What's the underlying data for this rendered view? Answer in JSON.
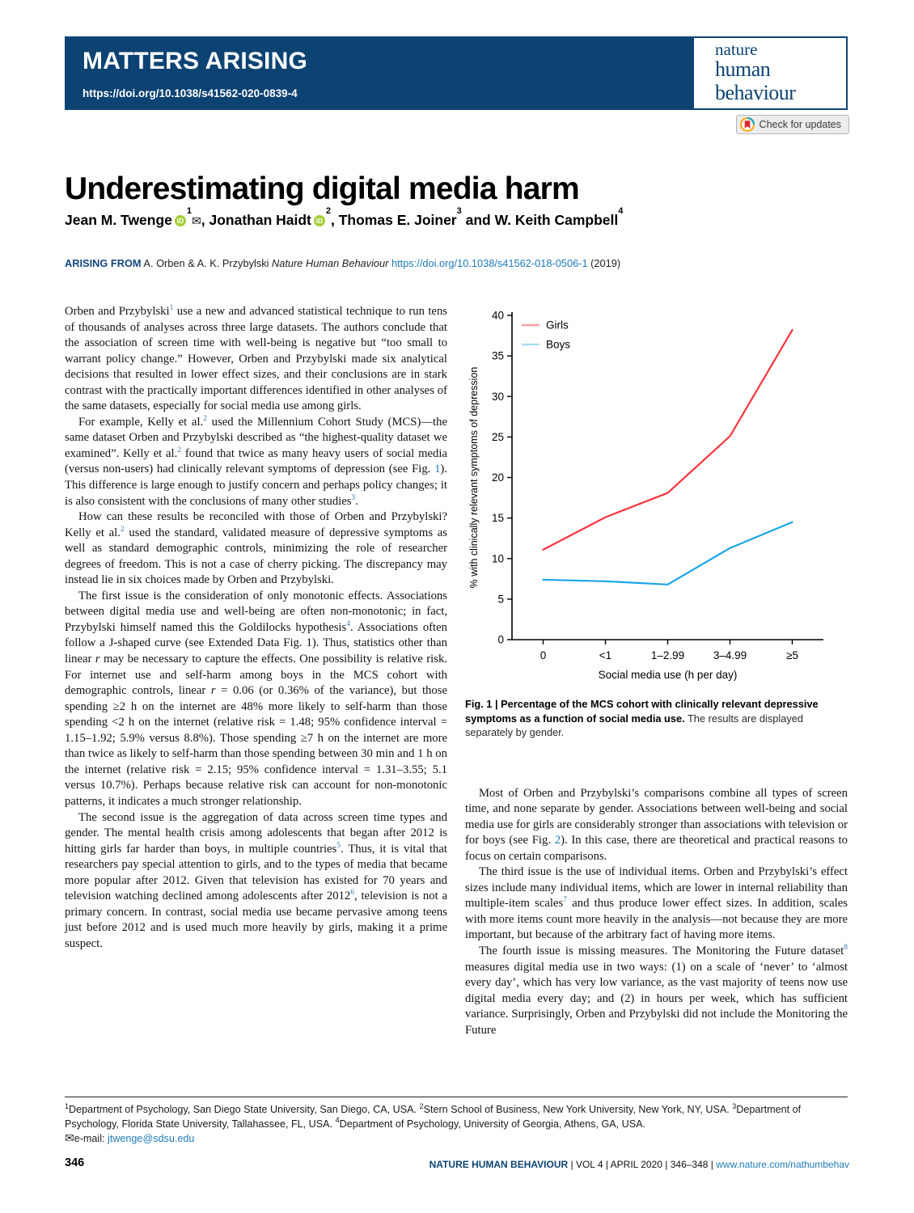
{
  "header": {
    "kicker": "MATTERS ARISING",
    "doi": "https://doi.org/10.1038/s41562-020-0839-4",
    "brand_top": "nature",
    "brand_bottom": "human behaviour",
    "banner_color": "#0d4373",
    "check_updates_label": "Check for updates"
  },
  "article": {
    "title": "Underestimating digital media harm",
    "authors_rich": "Jean M. Twenge{{orcid}}{{sup:1}}{{env}}, Jonathan Haidt{{orcid}}{{sup:2}}, Thomas E. Joiner{{sup:3}} and W. Keith Campbell{{sup:4}}",
    "arising_label": "ARISING FROM",
    "arising_rich": "A. Orben & A. K. Przybylski {{i:Nature Human Behaviour}} {{link:https://doi.org/10.1038/s41562-018-0506-1}} (2019)"
  },
  "left_column": {
    "paragraphs": [
      {
        "indent": false,
        "text": "Orben and Przybylski{{sup:1}} use a new and advanced statistical technique to run tens of thousands of analyses across three large datasets. The authors conclude that the association of screen time with well-being is negative but “too small to warrant policy change.” However, Orben and Przybylski made six analytical decisions that resulted in lower effect sizes, and their conclusions are in stark contrast with the practically important differences identified in other analyses of the same datasets, especially for social media use among girls."
      },
      {
        "indent": true,
        "text": "For example, Kelly et al.{{sup:2}} used the Millennium Cohort Study (MCS)—the same dataset Orben and Przybylski described as “the highest-quality dataset we examined”. Kelly et al.{{sup:2}} found that twice as many heavy users of social media (versus non-users) had clinically relevant symptoms of depression (see Fig. {{fig:1}}). This difference is large enough to justify concern and perhaps policy changes; it is also consistent with the conclusions of many other studies{{sup:3}}."
      },
      {
        "indent": true,
        "text": "How can these results be reconciled with those of Orben and Przybylski? Kelly et al.{{sup:2}} used the standard, validated measure of depressive symptoms as well as standard demographic controls, minimizing the role of researcher degrees of freedom. This is not a case of cherry picking. The discrepancy may instead lie in six choices made by Orben and Przybylski."
      },
      {
        "indent": true,
        "text": "The first issue is the consideration of only monotonic effects. Associations between digital media use and well-being are often non-monotonic; in fact, Przybylski himself named this the Goldilocks hypothesis{{sup:4}}. Associations often follow a J-shaped curve (see Extended Data Fig. 1). Thus, statistics other than linear {{i:r}} may be necessary to capture the effects. One possibility is relative risk. For internet use and self-harm among boys in the MCS cohort with demographic controls, linear {{i:r}} = 0.06 (or 0.36% of the variance), but those spending ≥2 h on the internet are 48% more likely to self-harm than those spending <2 h on the internet (relative risk = 1.48; 95% confidence interval = 1.15–1.92; 5.9% versus 8.8%). Those spending ≥7 h on the internet are more than twice as likely to self-harm than those spending between 30 min and 1 h on the internet (relative risk = 2.15; 95% confidence interval = 1.31–3.55; 5.1 versus 10.7%). Perhaps because relative risk can account for non-monotonic patterns, it indicates a much stronger relationship."
      },
      {
        "indent": true,
        "text": "The second issue is the aggregation of data across screen time types and gender. The mental health crisis among adolescents that began after 2012 is hitting girls far harder than boys, in multiple countries{{sup:5}}. Thus, it is vital that researchers pay special attention to girls, and to the types of media that became more popular after 2012. Given that television has existed for 70 years and television watching declined among adolescents after 2012{{sup:6}}, television is not a primary concern. In contrast, social media use became pervasive among teens just before 2012 and is used much more heavily by girls, making it a prime suspect."
      }
    ]
  },
  "right_column": {
    "paragraphs": [
      {
        "indent": true,
        "text": "Most of Orben and Przybylski’s comparisons combine all types of screen time, and none separate by gender. Associations between well-being and social media use for girls are considerably stronger than associations with television or for boys (see Fig. {{fig:2}}). In this case, there are theoretical and practical reasons to focus on certain comparisons."
      },
      {
        "indent": true,
        "text": "The third issue is the use of individual items. Orben and Przybylski’s effect sizes include many individual items, which are lower in internal reliability than multiple-item scales{{sup:7}} and thus produce lower effect sizes. In addition, scales with more items count more heavily in the analysis—not because they are more important, but because of the arbitrary fact of having more items."
      },
      {
        "indent": true,
        "text": "The fourth issue is missing measures. The Monitoring the Future dataset{{sup:8}} measures digital media use in two ways: (1) on a scale of ‘never’ to ‘almost every day’, which has very low variance, as the vast majority of teens now use digital media every day; and (2) in hours per week, which has sufficient variance. Surprisingly, Orben and Przybylski did not include the Monitoring the Future"
      }
    ]
  },
  "figure": {
    "caption_bold": "Fig. 1 | Percentage of the MCS cohort with clinically relevant depressive symptoms as a function of social media use.",
    "caption_rest": " The results are displayed separately by gender."
  },
  "chart_data": {
    "type": "line",
    "categories": [
      "0",
      "<1",
      "1–2.99",
      "3–4.99",
      "≥5"
    ],
    "series": [
      {
        "name": "Girls",
        "values": [
          11.1,
          15.1,
          18.1,
          25.1,
          38.2
        ],
        "color": "#f8353d",
        "legend_color": "#f59fa3"
      },
      {
        "name": "Boys",
        "values": [
          7.4,
          7.2,
          6.8,
          11.3,
          14.5
        ],
        "color": "#19a6e8",
        "legend_color": "#a8dcf0"
      }
    ],
    "xlabel": "Social media use (h per day)",
    "ylabel": "% with clinically relevant symptoms of depression",
    "ylim": [
      0,
      40
    ],
    "ytick_step": 5,
    "grid": false,
    "legend_position": "top-left"
  },
  "footer": {
    "affiliations_rich": "{{sup:1}}Department of Psychology, San Diego State University, San Diego, CA, USA. {{sup:2}}Stern School of Business, New York University, New York, NY, USA. {{sup:3}}Department of Psychology, Florida State University, Tallahassee, FL, USA. {{sup:4}}Department of Psychology, University of Georgia, Athens, GA, USA.",
    "email_label": "{{env}}e-mail: ",
    "email": "jtwenge@sdsu.edu",
    "page_number": "346",
    "journal_brand": "NATURE HUMAN BEHAVIOUR",
    "journal_mid": " | VOL 4 | APRIL 2020 | 346–348 | ",
    "journal_url": "www.nature.com/nathumbehav"
  }
}
